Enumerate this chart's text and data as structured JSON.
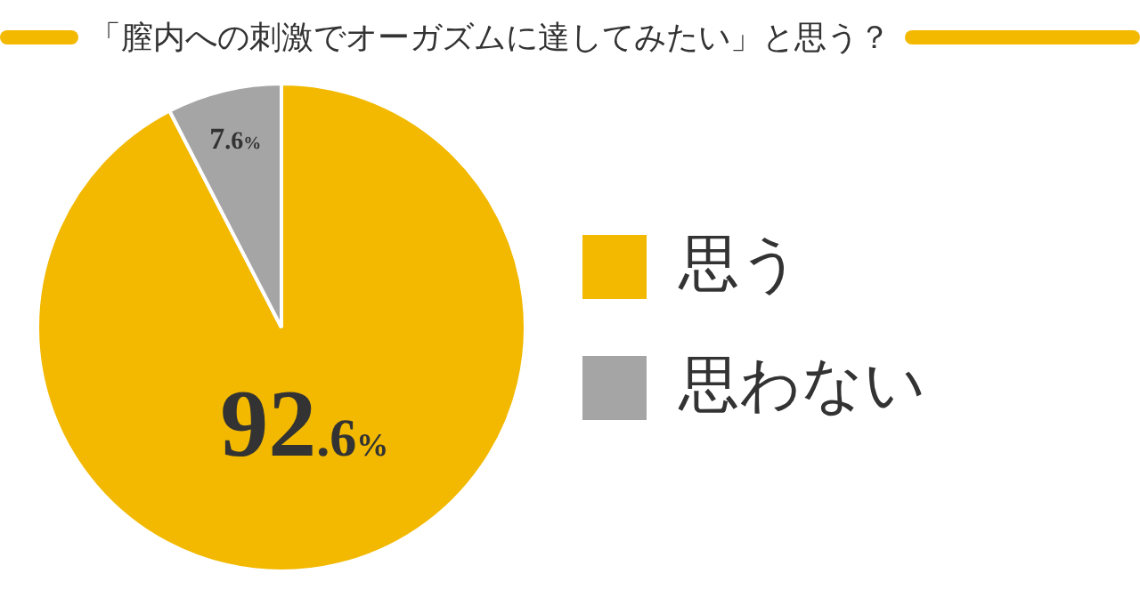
{
  "chart_data": {
    "type": "pie",
    "title": "「膣内への刺激でオーガズムに達してみたい」と思う？",
    "categories": [
      "思う",
      "思わない"
    ],
    "values": [
      92.6,
      7.6
    ],
    "colors": [
      "#f2b900",
      "#a5a5a5"
    ],
    "value_labels": [
      "92.6%",
      "7.6%"
    ],
    "legend": "right"
  }
}
